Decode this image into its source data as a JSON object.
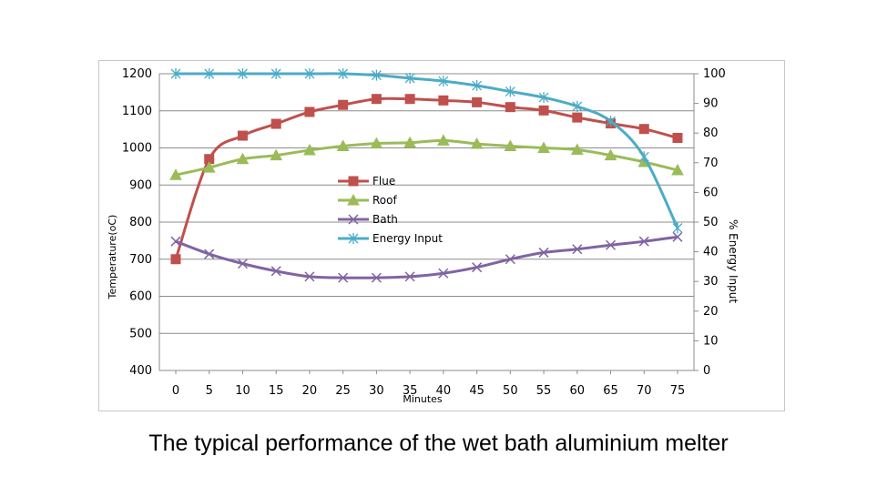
{
  "caption": "The typical performance of the wet bath aluminium melter",
  "chart_data": {
    "type": "line",
    "title": "",
    "xlabel": "Minutes",
    "ylabel": "Temperature(oC)",
    "y2label": "% Energy Input",
    "x": [
      0,
      5,
      10,
      15,
      20,
      25,
      30,
      35,
      40,
      45,
      50,
      55,
      60,
      65,
      70,
      75
    ],
    "ylim": [
      400,
      1200
    ],
    "y_ticks": [
      400,
      500,
      600,
      700,
      800,
      900,
      1000,
      1100,
      1200
    ],
    "y2lim": [
      0,
      100
    ],
    "y2_ticks": [
      0,
      10,
      20,
      30,
      40,
      50,
      60,
      70,
      80,
      90,
      100
    ],
    "grid": "horizontal",
    "legend_position": "center-left",
    "series": [
      {
        "name": "Flue",
        "axis": "left",
        "color": "#c0504d",
        "marker": "square",
        "values": [
          700,
          970,
          1033,
          1065,
          1097,
          1116,
          1132,
          1132,
          1128,
          1123,
          1110,
          1101,
          1082,
          1066,
          1051,
          1027
        ]
      },
      {
        "name": "Roof",
        "axis": "left",
        "color": "#9bbb59",
        "marker": "triangle",
        "values": [
          927,
          947,
          970,
          980,
          994,
          1005,
          1012,
          1014,
          1020,
          1011,
          1005,
          1000,
          995,
          980,
          962,
          940
        ]
      },
      {
        "name": "Bath",
        "axis": "left",
        "color": "#8064a2",
        "marker": "x",
        "values": [
          748,
          714,
          688,
          668,
          653,
          650,
          650,
          653,
          662,
          678,
          700,
          718,
          727,
          738,
          748,
          760
        ]
      },
      {
        "name": "Energy Input",
        "axis": "right",
        "color": "#4bacc6",
        "marker": "asterisk",
        "values": [
          100,
          100,
          100,
          100,
          100,
          100,
          99.5,
          98.5,
          97.5,
          96,
          94,
          92,
          89,
          84,
          72,
          48
        ]
      }
    ]
  }
}
